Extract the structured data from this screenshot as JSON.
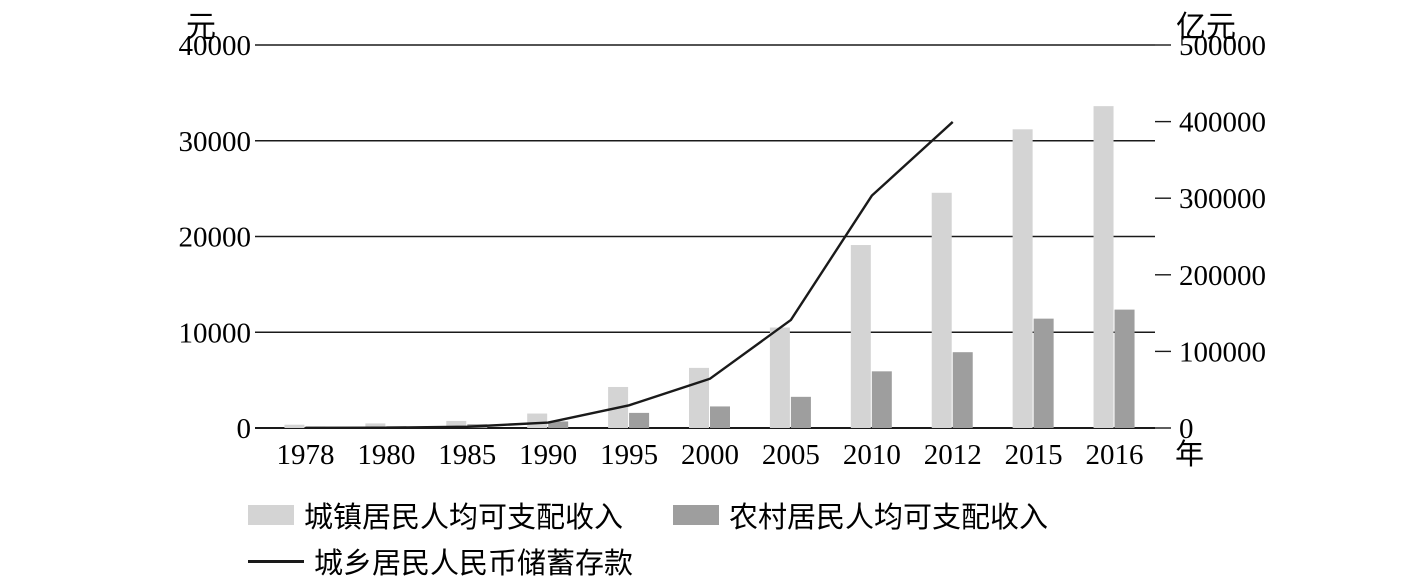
{
  "chart_data": {
    "type": "bar",
    "subtype": "grouped-bars-with-line-dual-axis",
    "categories": [
      "1978",
      "1980",
      "1985",
      "1990",
      "1995",
      "2000",
      "2005",
      "2010",
      "2012",
      "2015",
      "2016"
    ],
    "series": [
      {
        "name": "城镇居民人均可支配收入",
        "type": "bar",
        "axis": "left",
        "color": "#d4d4d4",
        "values": [
          343,
          478,
          739,
          1510,
          4283,
          6280,
          10493,
          19109,
          24565,
          31195,
          33616
        ]
      },
      {
        "name": "农村居民人均可支配收入",
        "type": "bar",
        "axis": "left",
        "color": "#9e9e9e",
        "values": [
          134,
          191,
          398,
          686,
          1578,
          2253,
          3255,
          5919,
          7917,
          11422,
          12363
        ]
      },
      {
        "name": "城乡居民人民币储蓄存款",
        "type": "line",
        "axis": "right",
        "color": "#1a1a1a",
        "values": [
          211,
          400,
          1623,
          7120,
          29662,
          64332,
          141051,
          303302,
          399551,
          null,
          null
        ]
      }
    ],
    "left_axis": {
      "unit": "元",
      "max": 40000,
      "ticks": [
        0,
        10000,
        20000,
        30000,
        40000
      ]
    },
    "right_axis": {
      "unit": "亿元",
      "max": 500000,
      "ticks": [
        0,
        100000,
        200000,
        300000,
        400000,
        500000
      ]
    },
    "x_axis": {
      "unit": "年"
    },
    "grid": true,
    "legend_position": "bottom",
    "title": ""
  }
}
